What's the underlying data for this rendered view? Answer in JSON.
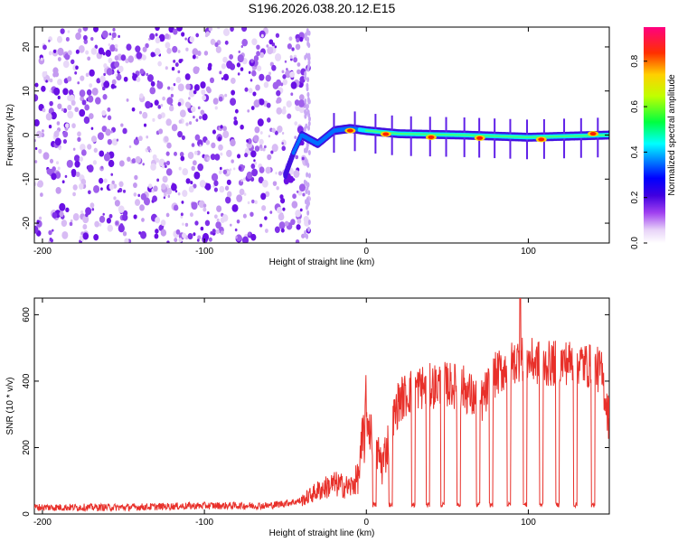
{
  "title": "S196.2026.038.20.12.E15",
  "chart_data": [
    {
      "type": "heatmap",
      "xlabel": "Height of straight line (km)",
      "ylabel": "Frequency (Hz)",
      "xlim": [
        -205,
        150
      ],
      "ylim": [
        -24.5,
        24.5
      ],
      "xticks": [
        -200,
        -100,
        0,
        100
      ],
      "yticks": [
        -20,
        -10,
        0,
        10,
        20
      ],
      "colorbar": {
        "label": "Normalized spectral amplitude",
        "range": [
          0,
          0.95
        ],
        "ticks": [
          0.0,
          0.2,
          0.4,
          0.6,
          0.8
        ],
        "colormap": [
          "#ffffff",
          "#e8d4f8",
          "#a040f0",
          "#6000e0",
          "#0000ff",
          "#00a0ff",
          "#00ffff",
          "#00ff00",
          "#ffff00",
          "#ff8000",
          "#ff0000",
          "#ff0080"
        ]
      },
      "noise_region": {
        "x_range": [
          -205,
          -35
        ],
        "amplitude": [
          0.02,
          0.15
        ]
      },
      "signal_line": {
        "points": [
          {
            "x": -50,
            "y": -9
          },
          {
            "x": -45,
            "y": -4
          },
          {
            "x": -40,
            "y": 0
          },
          {
            "x": -30,
            "y": -2
          },
          {
            "x": -20,
            "y": 1
          },
          {
            "x": -10,
            "y": 1.5
          },
          {
            "x": 0,
            "y": 1
          },
          {
            "x": 20,
            "y": 0.3
          },
          {
            "x": 60,
            "y": 0
          },
          {
            "x": 100,
            "y": -0.5
          },
          {
            "x": 150,
            "y": 0
          }
        ],
        "peaks": [
          {
            "x": -10,
            "y": 1,
            "amp": 0.9
          },
          {
            "x": 12,
            "y": 0.2,
            "amp": 0.9
          },
          {
            "x": 40,
            "y": -0.5,
            "amp": 0.85
          },
          {
            "x": 70,
            "y": -0.7,
            "amp": 0.85
          },
          {
            "x": 108,
            "y": -1,
            "amp": 0.9
          },
          {
            "x": 140,
            "y": 0.3,
            "amp": 0.8
          }
        ]
      }
    },
    {
      "type": "line",
      "xlabel": "Height of straight line (km)",
      "ylabel": "SNR (10 * v/v)",
      "xlim": [
        -205,
        150
      ],
      "ylim": [
        0,
        650
      ],
      "xticks": [
        -200,
        -100,
        0,
        100
      ],
      "yticks": [
        0,
        200,
        400,
        600
      ],
      "color": "#e8302a",
      "series": [
        {
          "values_profile": [
            {
              "x": -205,
              "y": 20
            },
            {
              "x": -150,
              "y": 20
            },
            {
              "x": -100,
              "y": 25
            },
            {
              "x": -60,
              "y": 25
            },
            {
              "x": -40,
              "y": 40
            },
            {
              "x": -30,
              "y": 70
            },
            {
              "x": -20,
              "y": 90
            },
            {
              "x": -10,
              "y": 80
            },
            {
              "x": -5,
              "y": 110
            },
            {
              "x": 0,
              "y": 300
            },
            {
              "x": 5,
              "y": 200
            },
            {
              "x": 10,
              "y": 150
            },
            {
              "x": 15,
              "y": 250
            },
            {
              "x": 20,
              "y": 340
            },
            {
              "x": 30,
              "y": 380
            },
            {
              "x": 50,
              "y": 390
            },
            {
              "x": 60,
              "y": 380
            },
            {
              "x": 70,
              "y": 330
            },
            {
              "x": 80,
              "y": 420
            },
            {
              "x": 95,
              "y": 470
            },
            {
              "x": 110,
              "y": 450
            },
            {
              "x": 130,
              "y": 460
            },
            {
              "x": 145,
              "y": 430
            },
            {
              "x": 150,
              "y": 280
            }
          ],
          "dropouts": [
            5,
            15,
            29,
            38,
            47,
            57,
            69,
            77,
            88,
            98,
            108,
            118,
            129,
            140
          ],
          "spikes": [
            {
              "x": 95,
              "y": 660
            }
          ]
        }
      ]
    }
  ]
}
